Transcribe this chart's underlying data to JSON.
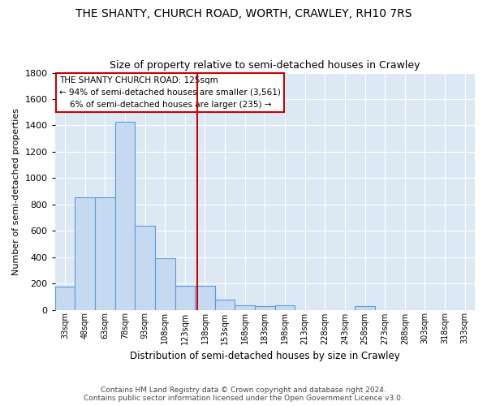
{
  "title": "THE SHANTY, CHURCH ROAD, WORTH, CRAWLEY, RH10 7RS",
  "subtitle": "Size of property relative to semi-detached houses in Crawley",
  "xlabel": "Distribution of semi-detached houses by size in Crawley",
  "ylabel": "Number of semi-detached properties",
  "footer_line1": "Contains HM Land Registry data © Crown copyright and database right 2024.",
  "footer_line2": "Contains public sector information licensed under the Open Government Licence v3.0.",
  "bar_color": "#c5d9f0",
  "bar_edge_color": "#5b9bd5",
  "background_color": "#dce9f5",
  "annotation_box_color": "#ffffff",
  "annotation_box_edge": "#cc0000",
  "vline_color": "#cc0000",
  "categories": [
    "33sqm",
    "48sqm",
    "63sqm",
    "78sqm",
    "93sqm",
    "108sqm",
    "123sqm",
    "138sqm",
    "153sqm",
    "168sqm",
    "183sqm",
    "198sqm",
    "213sqm",
    "228sqm",
    "243sqm",
    "258sqm",
    "273sqm",
    "288sqm",
    "303sqm",
    "318sqm",
    "333sqm"
  ],
  "values": [
    175,
    855,
    855,
    1430,
    640,
    390,
    185,
    185,
    75,
    35,
    25,
    35,
    0,
    0,
    0,
    25,
    0,
    0,
    0,
    0,
    0
  ],
  "property_label": "THE SHANTY CHURCH ROAD: 125sqm",
  "pct_smaller": 94,
  "n_smaller": 3561,
  "pct_larger": 6,
  "n_larger": 235,
  "ylim": [
    0,
    1800
  ],
  "yticks": [
    0,
    200,
    400,
    600,
    800,
    1000,
    1200,
    1400,
    1600,
    1800
  ],
  "vline_pos": 6.633
}
